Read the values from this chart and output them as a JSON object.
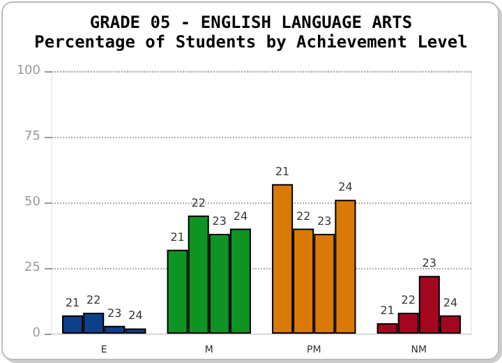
{
  "chart_data": {
    "type": "bar",
    "title": "GRADE 05 - ENGLISH LANGUAGE ARTS",
    "subtitle": "Percentage of Students by Achievement Level",
    "categories": [
      "E",
      "M",
      "PM",
      "NM"
    ],
    "series": [
      {
        "name": "21",
        "colors": [
          "#0d3f8a",
          "#0f9424",
          "#d97a06",
          "#a3061e"
        ],
        "values": [
          7,
          32,
          57,
          4
        ]
      },
      {
        "name": "22",
        "colors": [
          "#0d3f8a",
          "#0f9424",
          "#d97a06",
          "#a3061e"
        ],
        "values": [
          8,
          45,
          40,
          8
        ]
      },
      {
        "name": "23",
        "colors": [
          "#0d3f8a",
          "#0f9424",
          "#d97a06",
          "#a3061e"
        ],
        "values": [
          3,
          38,
          38,
          22
        ]
      },
      {
        "name": "24",
        "colors": [
          "#0d3f8a",
          "#0f9424",
          "#d97a06",
          "#a3061e"
        ],
        "values": [
          2,
          40,
          51,
          7
        ]
      }
    ],
    "ylim": [
      0,
      100
    ],
    "yticks": [
      0,
      25,
      50,
      75,
      100
    ],
    "grid": "y",
    "legend": false
  }
}
